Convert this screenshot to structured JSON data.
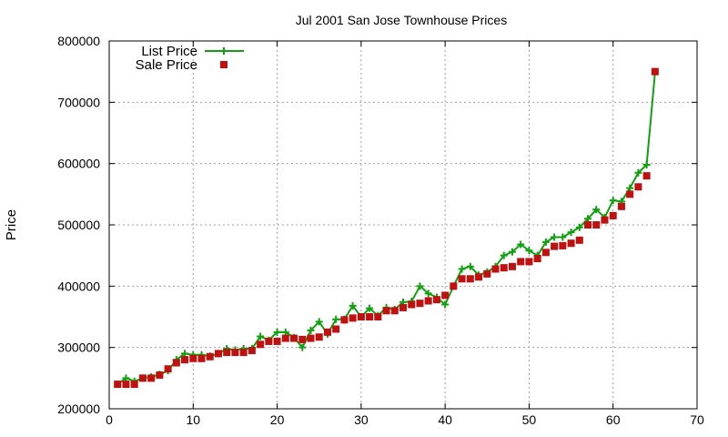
{
  "chart_data": {
    "type": "line",
    "title": "Jul 2001 San Jose Townhouse Prices",
    "xlabel": "",
    "ylabel": "Price",
    "xlim": [
      0,
      70
    ],
    "ylim": [
      200000,
      800000
    ],
    "xticks": [
      0,
      10,
      20,
      30,
      40,
      50,
      60,
      70
    ],
    "yticks": [
      200000,
      300000,
      400000,
      500000,
      600000,
      700000,
      800000
    ],
    "grid": true,
    "legend_position": "top-left",
    "series": [
      {
        "name": "List Price",
        "style": "line-plus",
        "color": "#10a010",
        "x": [
          1,
          2,
          3,
          4,
          5,
          6,
          7,
          8,
          9,
          10,
          11,
          12,
          13,
          14,
          15,
          16,
          17,
          18,
          19,
          20,
          21,
          22,
          23,
          24,
          25,
          26,
          27,
          28,
          29,
          30,
          31,
          32,
          33,
          34,
          35,
          36,
          37,
          38,
          39,
          40,
          41,
          42,
          43,
          44,
          45,
          46,
          47,
          48,
          49,
          50,
          51,
          52,
          53,
          54,
          55,
          56,
          57,
          58,
          59,
          60,
          61,
          62,
          63,
          64,
          65
        ],
        "values": [
          240000,
          250000,
          245000,
          250000,
          252000,
          256000,
          262000,
          280000,
          290000,
          288000,
          288000,
          286000,
          290000,
          298000,
          296000,
          298000,
          298000,
          318000,
          312000,
          325000,
          325000,
          316000,
          300000,
          328000,
          342000,
          322000,
          346000,
          346000,
          368000,
          350000,
          364000,
          352000,
          365000,
          362000,
          374000,
          375000,
          400000,
          388000,
          382000,
          370000,
          400000,
          428000,
          432000,
          418000,
          423000,
          432000,
          450000,
          456000,
          468000,
          458000,
          450000,
          472000,
          480000,
          480000,
          488000,
          496000,
          510000,
          525000,
          512000,
          540000,
          538000,
          560000,
          585000,
          598000,
          750000
        ]
      },
      {
        "name": "Sale Price",
        "style": "points-square",
        "color": "#c01010",
        "x": [
          1,
          2,
          3,
          4,
          5,
          6,
          7,
          8,
          9,
          10,
          11,
          12,
          13,
          14,
          15,
          16,
          17,
          18,
          19,
          20,
          21,
          22,
          23,
          24,
          25,
          26,
          27,
          28,
          29,
          30,
          31,
          32,
          33,
          34,
          35,
          36,
          37,
          38,
          39,
          40,
          41,
          42,
          43,
          44,
          45,
          46,
          47,
          48,
          49,
          50,
          51,
          52,
          53,
          54,
          55,
          56,
          57,
          58,
          59,
          60,
          61,
          62,
          63,
          64,
          65
        ],
        "values": [
          240000,
          240000,
          240000,
          250000,
          250000,
          255000,
          265000,
          275000,
          280000,
          282000,
          282000,
          285000,
          290000,
          292000,
          292000,
          292000,
          295000,
          305000,
          310000,
          310000,
          315000,
          315000,
          313000,
          315000,
          317000,
          325000,
          330000,
          345000,
          348000,
          350000,
          350000,
          350000,
          360000,
          360000,
          365000,
          370000,
          372000,
          376000,
          378000,
          385000,
          400000,
          412000,
          412000,
          415000,
          420000,
          428000,
          430000,
          432000,
          440000,
          440000,
          445000,
          455000,
          465000,
          466000,
          470000,
          475000,
          500000,
          500000,
          508000,
          515000,
          530000,
          550000,
          562000,
          580000,
          750000
        ]
      }
    ]
  }
}
